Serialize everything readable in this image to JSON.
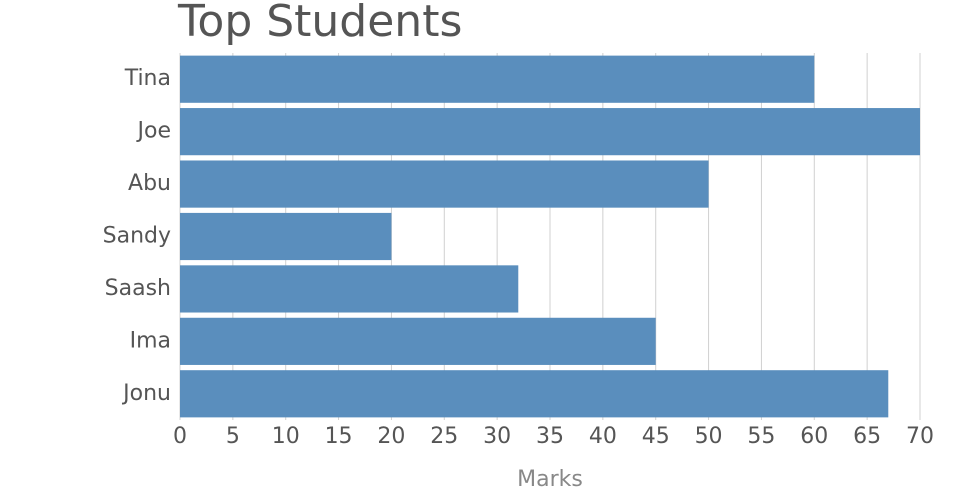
{
  "chart_data": {
    "type": "bar",
    "orientation": "horizontal",
    "title": "Top Students",
    "x_label": "Marks",
    "categories": [
      "Tina",
      "Joe",
      "Abu",
      "Sandy",
      "Saash",
      "Ima",
      "Jonu"
    ],
    "values": [
      60,
      70,
      50,
      20,
      32,
      45,
      67
    ],
    "color": "#5a8ebd",
    "xlim": [
      0,
      70
    ],
    "xticks": [
      0,
      5,
      10,
      15,
      20,
      25,
      30,
      35,
      40,
      45,
      50,
      55,
      60,
      65,
      70
    ],
    "grid": true
  }
}
